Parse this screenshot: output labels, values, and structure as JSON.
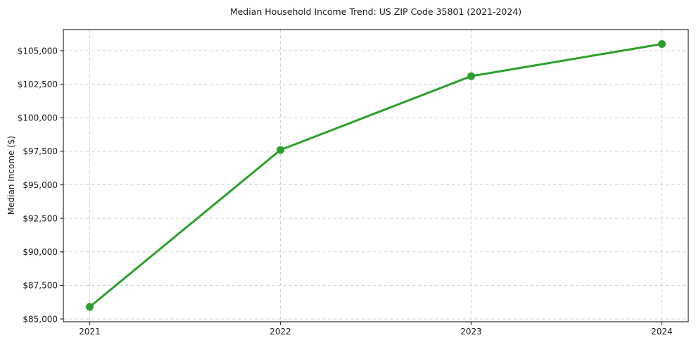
{
  "figure": {
    "background": "#ffffff"
  },
  "chart_data": {
    "type": "line",
    "title": "Median Household Income Trend: US ZIP Code 35801 (2021-2024)",
    "xlabel": "",
    "ylabel": "Median Income ($)",
    "x": [
      2021,
      2022,
      2023,
      2024
    ],
    "x_tick_labels": [
      "2021",
      "2022",
      "2023",
      "2024"
    ],
    "series": [
      {
        "name": "Median Household Income",
        "values": [
          85900,
          97600,
          103100,
          105500
        ],
        "color": "#2ca02c",
        "marker": "circle"
      }
    ],
    "y_ticks": [
      85000,
      87500,
      90000,
      92500,
      95000,
      97500,
      100000,
      102500,
      105000
    ],
    "y_tick_labels": [
      "$85,000",
      "$87,500",
      "$90,000",
      "$92,500",
      "$95,000",
      "$97,500",
      "$100,000",
      "$102,500",
      "$105,000"
    ],
    "ylim": [
      84790,
      106575
    ],
    "grid": true,
    "grid_style": "dashed",
    "grid_color": "#d0d0d0",
    "spine_color": "#2b2b2b",
    "text_color": "#1a1a1a",
    "legend": "none"
  }
}
